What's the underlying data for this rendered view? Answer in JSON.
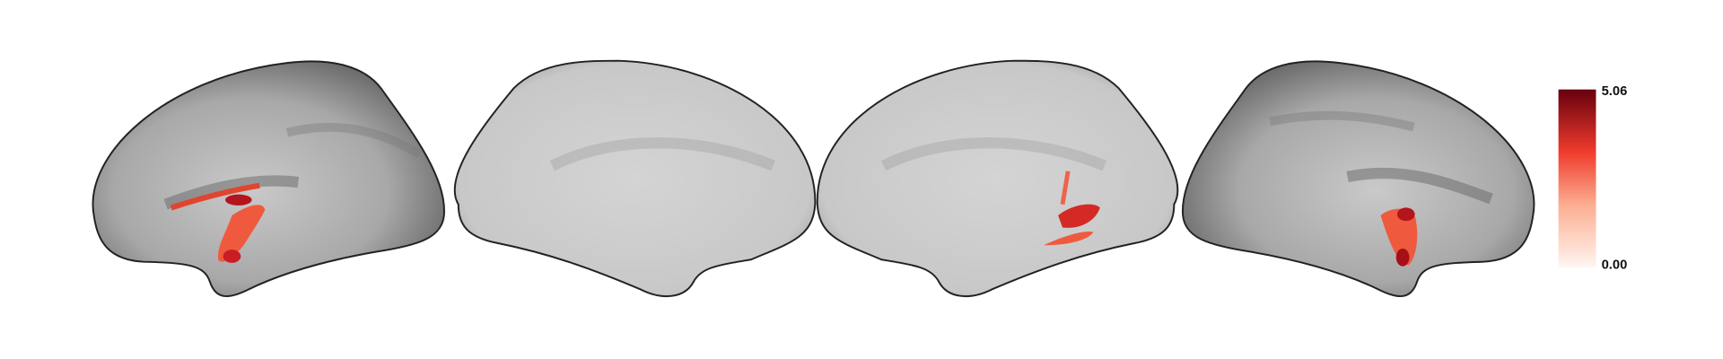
{
  "colorbar": {
    "max_label": "5.06",
    "min_label": "0.00"
  }
}
